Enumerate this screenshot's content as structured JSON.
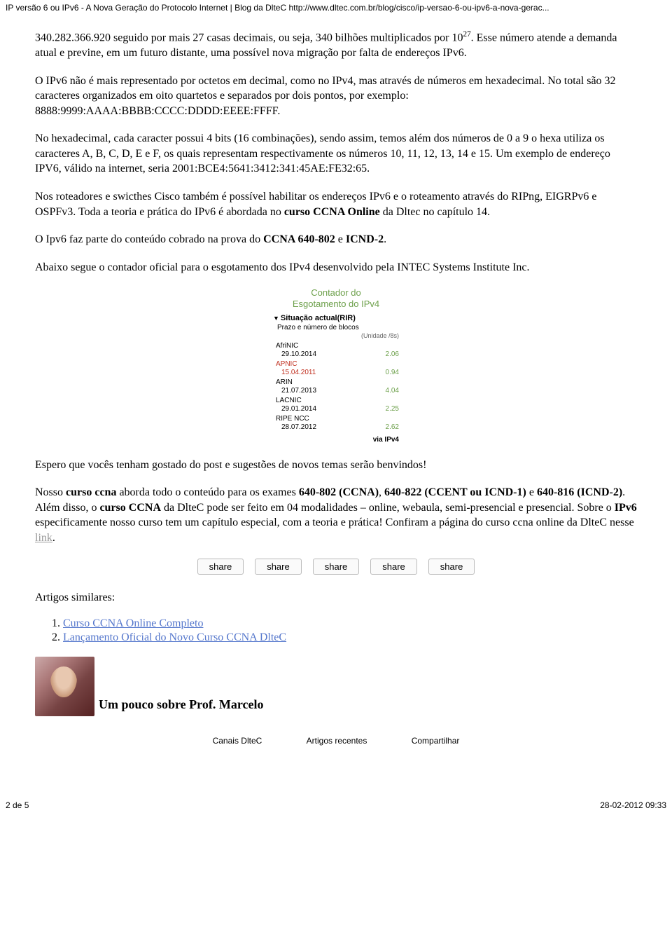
{
  "header": {
    "left": "IP versão 6 ou IPv6 - A Nova Geração do Protocolo Internet | Blog da DlteC  http://www.dltec.com.br/blog/cisco/ip-versao-6-ou-ipv6-a-nova-gerac..."
  },
  "para1_a": "340.282.366.920 seguido por mais 27 casas decimais, ou seja, 340 bilhões multiplicados por 10",
  "para1_sup": "27",
  "para1_b": ". Esse número atende a demanda atual e previne, em um futuro distante, uma possível nova migração por falta de endereços IPv6.",
  "para2": "O IPv6 não é mais representado por octetos em decimal, como no IPv4, mas através de números em hexadecimal. No total são 32 caracteres organizados em oito quartetos e separados por dois pontos, por exemplo: 8888:9999:AAAA:BBBB:CCCC:DDDD:EEEE:FFFF.",
  "para3": "No hexadecimal, cada caracter possui 4 bits (16 combinações), sendo assim, temos além dos números de 0 a 9 o hexa utiliza os caracteres A, B, C, D, E e F, os quais representam respectivamente os números 10, 11, 12, 13, 14 e 15. Um exemplo de endereço IPV6, válido na internet, seria 2001:BCE4:5641:3412:341:45AE:FE32:65.",
  "para4_a": "Nos roteadores e swicthes Cisco também é possível habilitar os endereços IPv6 e o roteamento através do RIPng, EIGRPv6 e OSPFv3. Toda a teoria e prática do IPv6 é abordada no ",
  "para4_b": "curso CCNA Online",
  "para4_c": " da Dltec no capítulo 14.",
  "para5_a": "O Ipv6 faz parte do conteúdo cobrado na prova do ",
  "para5_b": "CCNA 640-802",
  "para5_c": " e ",
  "para5_d": "ICND-2",
  "para5_e": ".",
  "para6": "Abaixo segue o contador oficial para o esgotamento dos IPv4 desenvolvido pela  INTEC Systems Institute Inc.",
  "counter": {
    "title1": "Contador do",
    "title2": "Esgotamento do IPv4",
    "sub": "Situação actual(RIR)",
    "desc": "Prazo e número de blocos",
    "unit": "(Unidade /8s)",
    "rows": [
      {
        "name": "AfriNIC",
        "date": "29.10.2014",
        "val": "2.06",
        "red": false
      },
      {
        "name": "APNIC",
        "date": "15.04.2011",
        "val": "0.94",
        "red": true
      },
      {
        "name": "ARIN",
        "date": "21.07.2013",
        "val": "4.04",
        "red": false
      },
      {
        "name": "LACNIC",
        "date": "29.01.2014",
        "val": "2.25",
        "red": false
      },
      {
        "name": "RIPE NCC",
        "date": "28.07.2012",
        "val": "2.62",
        "red": false
      }
    ],
    "via": "via IPv4"
  },
  "para7": "Espero que vocês tenham gostado do post e sugestões de novos temas serão benvindos!",
  "para8_a": "Nosso ",
  "para8_b": "curso ccna",
  "para8_c": " aborda todo o conteúdo para os exames ",
  "para8_d": "640-802 (CCNA)",
  "para8_e": ", ",
  "para8_f": "640-822 (CCENT ou ICND-1)",
  "para8_g": " e ",
  "para8_h": "640-816 (ICND-2)",
  "para8_i": ". Além disso, o ",
  "para8_j": "curso CCNA",
  "para8_k": " da DlteC pode ser feito em 04 modalidades – online, webaula, semi-presencial e presencial. Sobre o ",
  "para8_l": "IPv6",
  "para8_m": " especificamente nosso curso tem um capítulo especial, com a teoria e prática! Confiram a página do curso ccna online da DlteC nesse ",
  "para8_link": "link",
  "para8_n": ".",
  "share_label": "share",
  "similar_heading": "Artigos similares:",
  "similar": [
    "Curso CCNA Online Completo",
    "Lançamento Oficial do Novo Curso CCNA DlteC"
  ],
  "author_heading": "Um pouco sobre Prof. Marcelo",
  "footer_tabs": [
    "Canais DlteC",
    "Artigos recentes",
    "Compartilhar"
  ],
  "page_footer": {
    "left": "2 de 5",
    "right": "28-02-2012 09:33"
  }
}
